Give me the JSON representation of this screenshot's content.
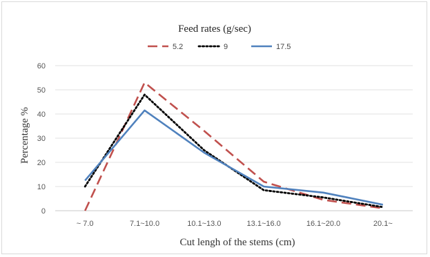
{
  "chart_data": {
    "type": "line",
    "legend_title": "Feed rates (g/sec)",
    "legend_position": "top",
    "xlabel": "Cut lengh  of the stems (cm)",
    "ylabel": "Percentage %",
    "categories": [
      "~ 7.0",
      "7.1~10.0",
      "10.1~13.0",
      "13.1~16.0",
      "16.1~20.0",
      "20.1~"
    ],
    "ylim": [
      0,
      60
    ],
    "yticks": [
      0,
      10,
      20,
      30,
      40,
      50,
      60
    ],
    "grid": true,
    "series": [
      {
        "name": "5.2",
        "style": "dashed",
        "color": "#c0504d",
        "values": [
          0,
          53,
          33,
          12,
          4.5,
          1
        ]
      },
      {
        "name": "9",
        "style": "dotted",
        "color": "#000000",
        "values": [
          10,
          48,
          25,
          8.5,
          5.5,
          1.5
        ]
      },
      {
        "name": "17.5",
        "style": "solid",
        "color": "#4f81bd",
        "values": [
          12.5,
          41.5,
          24,
          10,
          7.5,
          2.5
        ]
      }
    ]
  }
}
